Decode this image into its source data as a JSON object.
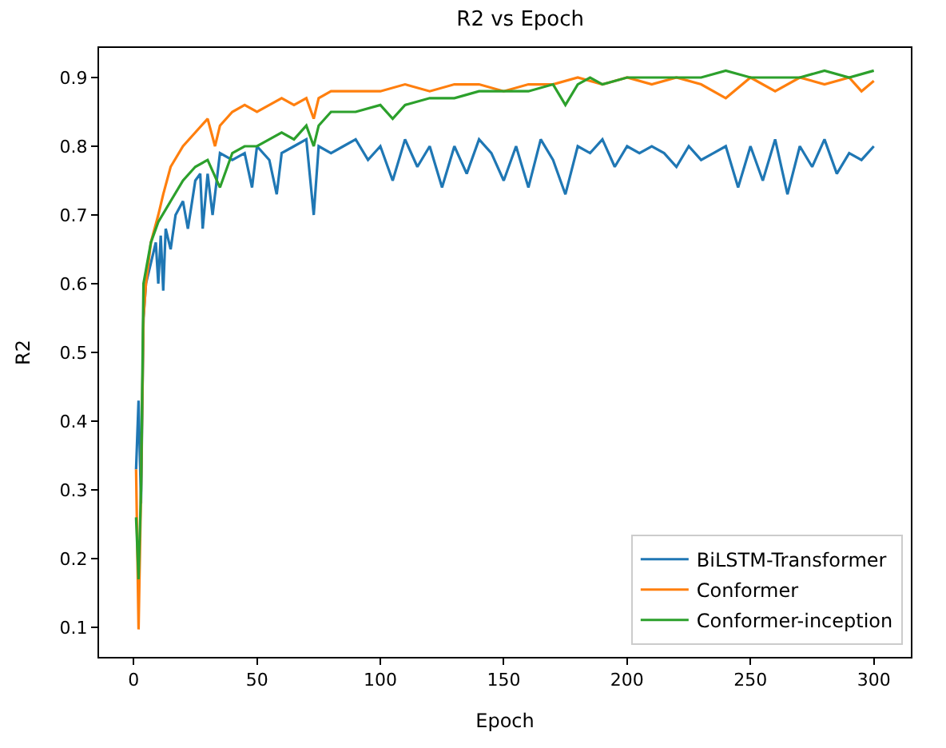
{
  "chart_data": {
    "type": "line",
    "title": "R2 vs Epoch",
    "xlabel": "Epoch",
    "ylabel": "R2",
    "xlim": [
      -14,
      315
    ],
    "ylim": [
      0.057,
      0.943
    ],
    "xticks": [
      0,
      50,
      100,
      150,
      200,
      250,
      300
    ],
    "yticks": [
      {
        "value": 0.1,
        "label": "0.1"
      },
      {
        "value": 0.2,
        "label": "0.2"
      },
      {
        "value": 0.3,
        "label": "0.3"
      },
      {
        "value": 0.4,
        "label": "0.4"
      },
      {
        "value": 0.5,
        "label": "0.5"
      },
      {
        "value": 0.6,
        "label": "0.6"
      },
      {
        "value": 0.7,
        "label": "0.7"
      },
      {
        "value": 0.8,
        "label": "0.8"
      },
      {
        "value": 0.9,
        "label": "0.9"
      }
    ],
    "legend": "bottom right",
    "marker": "none",
    "line_style": "solid",
    "series": [
      {
        "name": "BiLSTM-Transformer",
        "color": "#1f77b4",
        "x": [
          1,
          2,
          3,
          4,
          5,
          7,
          9,
          10,
          11,
          12,
          13,
          15,
          17,
          20,
          22,
          25,
          27,
          28,
          30,
          32,
          35,
          40,
          45,
          48,
          50,
          55,
          58,
          60,
          65,
          70,
          73,
          75,
          80,
          85,
          90,
          95,
          100,
          105,
          110,
          115,
          120,
          125,
          130,
          135,
          140,
          145,
          150,
          155,
          160,
          165,
          170,
          175,
          180,
          185,
          190,
          195,
          200,
          205,
          210,
          215,
          220,
          225,
          230,
          235,
          240,
          245,
          250,
          255,
          260,
          265,
          270,
          275,
          280,
          285,
          290,
          295,
          300
        ],
        "values": [
          0.33,
          0.43,
          0.28,
          0.55,
          0.6,
          0.63,
          0.66,
          0.6,
          0.67,
          0.59,
          0.68,
          0.65,
          0.7,
          0.72,
          0.68,
          0.75,
          0.76,
          0.68,
          0.76,
          0.7,
          0.79,
          0.78,
          0.79,
          0.74,
          0.8,
          0.78,
          0.73,
          0.79,
          0.8,
          0.81,
          0.7,
          0.8,
          0.79,
          0.8,
          0.81,
          0.78,
          0.8,
          0.75,
          0.81,
          0.77,
          0.8,
          0.74,
          0.8,
          0.76,
          0.81,
          0.79,
          0.75,
          0.8,
          0.74,
          0.81,
          0.78,
          0.73,
          0.8,
          0.79,
          0.81,
          0.77,
          0.8,
          0.79,
          0.8,
          0.79,
          0.77,
          0.8,
          0.78,
          0.79,
          0.8,
          0.74,
          0.8,
          0.75,
          0.81,
          0.73,
          0.8,
          0.77,
          0.81,
          0.76,
          0.79,
          0.78,
          0.8
        ]
      },
      {
        "name": "Conformer",
        "color": "#ff7f0e",
        "x": [
          1,
          2,
          3,
          4,
          5,
          7,
          10,
          12,
          15,
          20,
          25,
          30,
          33,
          35,
          40,
          45,
          50,
          55,
          60,
          65,
          70,
          73,
          75,
          80,
          90,
          100,
          110,
          120,
          130,
          140,
          150,
          160,
          170,
          180,
          190,
          200,
          210,
          220,
          230,
          240,
          250,
          260,
          270,
          280,
          290,
          295,
          300
        ],
        "values": [
          0.33,
          0.097,
          0.3,
          0.55,
          0.6,
          0.66,
          0.7,
          0.73,
          0.77,
          0.8,
          0.82,
          0.84,
          0.8,
          0.83,
          0.85,
          0.86,
          0.85,
          0.86,
          0.87,
          0.86,
          0.87,
          0.84,
          0.87,
          0.88,
          0.88,
          0.88,
          0.89,
          0.88,
          0.89,
          0.89,
          0.88,
          0.89,
          0.89,
          0.9,
          0.89,
          0.9,
          0.89,
          0.9,
          0.89,
          0.87,
          0.9,
          0.88,
          0.9,
          0.89,
          0.9,
          0.88,
          0.895
        ]
      },
      {
        "name": "Conformer-inception",
        "color": "#2ca02c",
        "x": [
          1,
          2,
          3,
          4,
          5,
          7,
          10,
          15,
          20,
          25,
          30,
          35,
          40,
          45,
          50,
          55,
          60,
          65,
          70,
          73,
          75,
          80,
          90,
          100,
          105,
          110,
          120,
          130,
          140,
          150,
          160,
          170,
          175,
          180,
          185,
          190,
          200,
          210,
          220,
          230,
          240,
          250,
          260,
          270,
          280,
          290,
          300
        ],
        "values": [
          0.26,
          0.17,
          0.3,
          0.6,
          0.62,
          0.66,
          0.69,
          0.72,
          0.75,
          0.77,
          0.78,
          0.74,
          0.79,
          0.8,
          0.8,
          0.81,
          0.82,
          0.81,
          0.83,
          0.8,
          0.83,
          0.85,
          0.85,
          0.86,
          0.84,
          0.86,
          0.87,
          0.87,
          0.88,
          0.88,
          0.88,
          0.89,
          0.86,
          0.89,
          0.9,
          0.89,
          0.9,
          0.9,
          0.9,
          0.9,
          0.91,
          0.9,
          0.9,
          0.9,
          0.91,
          0.9,
          0.91
        ]
      }
    ]
  }
}
